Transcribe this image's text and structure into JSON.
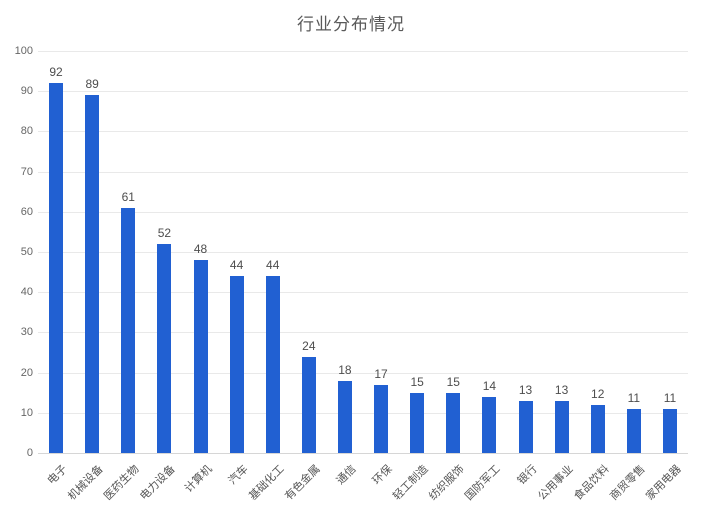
{
  "chart_data": {
    "type": "bar",
    "title": "行业分布情况",
    "categories": [
      "电子",
      "机械设备",
      "医药生物",
      "电力设备",
      "计算机",
      "汽车",
      "基础化工",
      "有色金属",
      "通信",
      "环保",
      "轻工制造",
      "纺织服饰",
      "国防军工",
      "银行",
      "公用事业",
      "食品饮料",
      "商贸零售",
      "家用电器"
    ],
    "values": [
      92,
      89,
      61,
      52,
      48,
      44,
      44,
      24,
      18,
      17,
      15,
      15,
      14,
      13,
      13,
      12,
      11,
      11
    ],
    "xlabel": "",
    "ylabel": "",
    "ylim": [
      0,
      100
    ],
    "ytick_step": 10,
    "yticks": [
      0,
      10,
      20,
      30,
      40,
      50,
      60,
      70,
      80,
      90,
      100
    ],
    "grid": true,
    "legend": null,
    "show_value_labels": true,
    "x_label_rotation_deg": 45,
    "colors": {
      "bar": "#2160d2",
      "value_label": "#4d4d4d",
      "axis_tick_label": "#666666",
      "category_label": "#555555",
      "gridline": "#e9e9e9",
      "axis_line": "#d6d6d6",
      "title": "#595959",
      "background": "#ffffff"
    }
  }
}
